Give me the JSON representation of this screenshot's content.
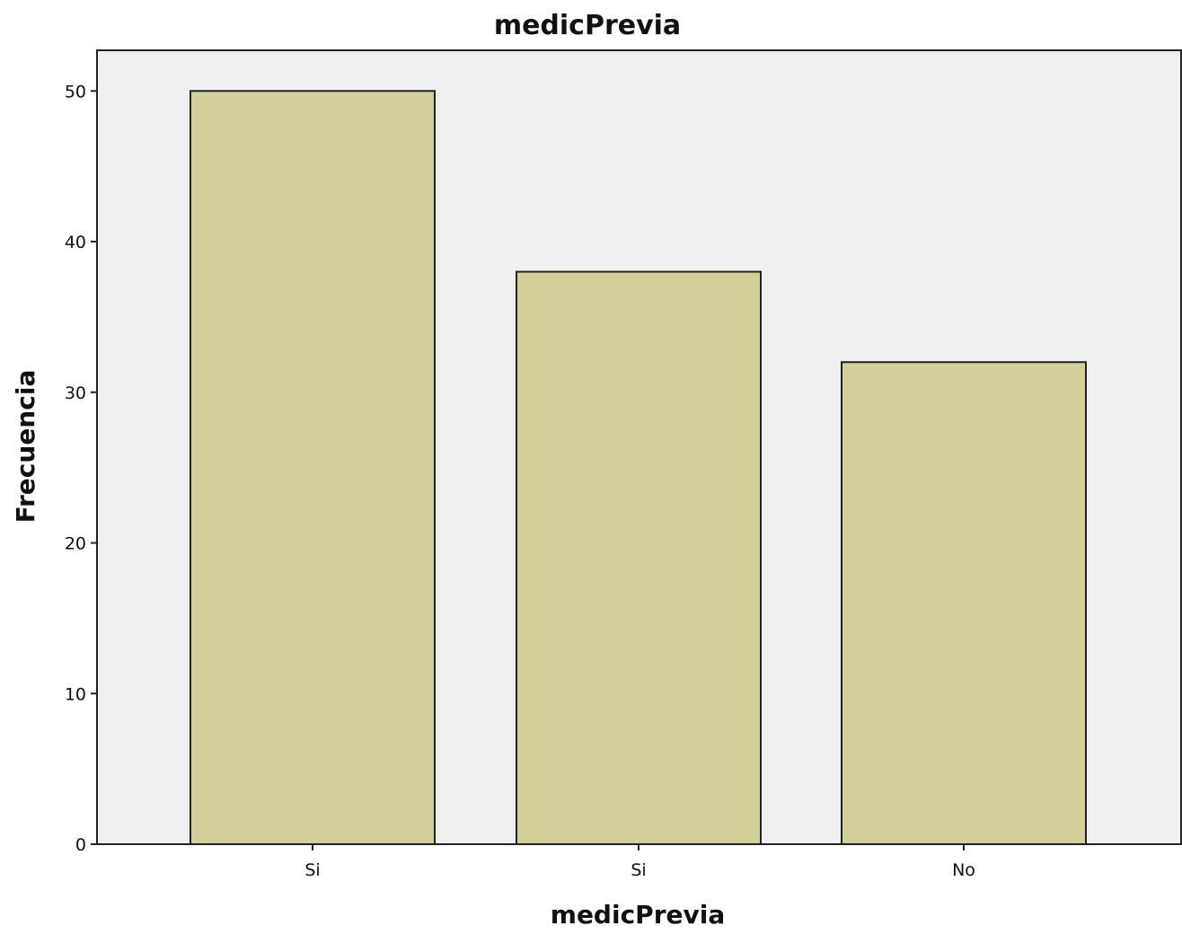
{
  "chart_data": {
    "type": "bar",
    "title": "medicPrevia",
    "xlabel": "medicPrevia",
    "ylabel": "Frecuencia",
    "categories": [
      "Si",
      "Si",
      "No"
    ],
    "values": [
      50,
      38,
      32
    ],
    "ylim": [
      0,
      52.7
    ],
    "yticks": [
      0,
      10,
      20,
      30,
      40,
      50
    ],
    "grid": false,
    "legend": "none",
    "colors": {
      "bar_fill": "#d3cf98",
      "bar_stroke": "#222222",
      "plot_background": "#f0f0f0",
      "axis": "#222222"
    }
  }
}
